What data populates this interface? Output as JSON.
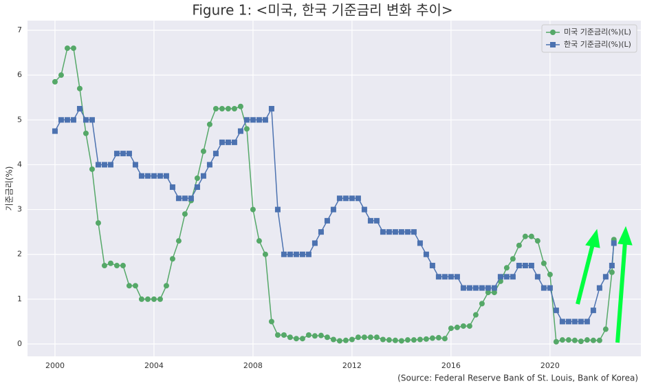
{
  "chart_data": {
    "type": "line",
    "title": "Figure 1: <미국, 한국 기준금리 변화 추이>",
    "y_label": "기준금리(%)",
    "source": "(Source: Federal Reserve Bank of St. Louis, Bank of Korea)",
    "xlim": [
      1998.89,
      2023.67
    ],
    "xticks": [
      2000,
      2004,
      2008,
      2012,
      2016,
      2020
    ],
    "ylim": [
      -0.276,
      7.215
    ],
    "yticks": [
      0,
      1,
      2,
      3,
      4,
      5,
      6,
      7
    ],
    "grid": true,
    "legend": "upper right",
    "series": [
      {
        "name": "미국 기준금리(%)(L)",
        "color": "#55a868",
        "marker": "circle",
        "x": [
          2000,
          2000.25,
          2000.5,
          2000.75,
          2001,
          2001.25,
          2001.5,
          2001.75,
          2002,
          2002.25,
          2002.5,
          2002.75,
          2003,
          2003.25,
          2003.5,
          2003.75,
          2004,
          2004.25,
          2004.5,
          2004.75,
          2005,
          2005.25,
          2005.5,
          2005.75,
          2006,
          2006.25,
          2006.5,
          2006.75,
          2007,
          2007.25,
          2007.5,
          2007.75,
          2008,
          2008.25,
          2008.5,
          2008.75,
          2009,
          2009.25,
          2009.5,
          2009.75,
          2010,
          2010.25,
          2010.5,
          2010.75,
          2011,
          2011.25,
          2011.5,
          2011.75,
          2012,
          2012.25,
          2012.5,
          2012.75,
          2013,
          2013.25,
          2013.5,
          2013.75,
          2014,
          2014.25,
          2014.5,
          2014.75,
          2015,
          2015.25,
          2015.5,
          2015.75,
          2016,
          2016.25,
          2016.5,
          2016.75,
          2017,
          2017.25,
          2017.5,
          2017.75,
          2018,
          2018.25,
          2018.5,
          2018.75,
          2019,
          2019.25,
          2019.5,
          2019.75,
          2020,
          2020.25,
          2020.5,
          2020.75,
          2021,
          2021.25,
          2021.5,
          2021.75,
          2022,
          2022.25,
          2022.5,
          2022.58
        ],
        "values": [
          5.85,
          6.0,
          6.6,
          6.6,
          5.7,
          4.7,
          3.9,
          2.7,
          1.75,
          1.8,
          1.75,
          1.75,
          1.3,
          1.3,
          1.0,
          1.0,
          1.0,
          1.0,
          1.3,
          1.9,
          2.3,
          2.9,
          3.2,
          3.7,
          4.3,
          4.9,
          5.25,
          5.25,
          5.25,
          5.25,
          5.3,
          4.8,
          3.0,
          2.3,
          2.0,
          0.5,
          0.2,
          0.2,
          0.15,
          0.12,
          0.12,
          0.2,
          0.18,
          0.19,
          0.15,
          0.1,
          0.07,
          0.08,
          0.1,
          0.15,
          0.15,
          0.15,
          0.15,
          0.1,
          0.09,
          0.08,
          0.07,
          0.09,
          0.09,
          0.1,
          0.11,
          0.13,
          0.14,
          0.12,
          0.35,
          0.37,
          0.4,
          0.4,
          0.65,
          0.9,
          1.15,
          1.15,
          1.4,
          1.7,
          1.9,
          2.2,
          2.4,
          2.4,
          2.3,
          1.8,
          1.55,
          0.05,
          0.09,
          0.09,
          0.08,
          0.06,
          0.09,
          0.08,
          0.08,
          0.33,
          1.6,
          2.33
        ]
      },
      {
        "name": "한국 기준금리(%)(L)",
        "color": "#4c72b0",
        "marker": "square",
        "x": [
          2000,
          2000.25,
          2000.5,
          2000.75,
          2001,
          2001.25,
          2001.5,
          2001.75,
          2002,
          2002.25,
          2002.5,
          2002.75,
          2003,
          2003.25,
          2003.5,
          2003.75,
          2004,
          2004.25,
          2004.5,
          2004.75,
          2005,
          2005.25,
          2005.5,
          2005.75,
          2006,
          2006.25,
          2006.5,
          2006.75,
          2007,
          2007.25,
          2007.5,
          2007.75,
          2008,
          2008.25,
          2008.5,
          2008.75,
          2009,
          2009.25,
          2009.5,
          2009.75,
          2010,
          2010.25,
          2010.5,
          2010.75,
          2011,
          2011.25,
          2011.5,
          2011.75,
          2012,
          2012.25,
          2012.5,
          2012.75,
          2013,
          2013.25,
          2013.5,
          2013.75,
          2014,
          2014.25,
          2014.5,
          2014.75,
          2015,
          2015.25,
          2015.5,
          2015.75,
          2016,
          2016.25,
          2016.5,
          2016.75,
          2017,
          2017.25,
          2017.5,
          2017.75,
          2018,
          2018.25,
          2018.5,
          2018.75,
          2019,
          2019.25,
          2019.5,
          2019.75,
          2020,
          2020.25,
          2020.5,
          2020.75,
          2021,
          2021.25,
          2021.5,
          2021.75,
          2022,
          2022.25,
          2022.5,
          2022.58
        ],
        "values": [
          4.75,
          5.0,
          5.0,
          5.0,
          5.25,
          5.0,
          5.0,
          4.0,
          4.0,
          4.0,
          4.25,
          4.25,
          4.25,
          4.0,
          3.75,
          3.75,
          3.75,
          3.75,
          3.75,
          3.5,
          3.25,
          3.25,
          3.25,
          3.5,
          3.75,
          4.0,
          4.25,
          4.5,
          4.5,
          4.5,
          4.75,
          5.0,
          5.0,
          5.0,
          5.0,
          5.25,
          3.0,
          2.0,
          2.0,
          2.0,
          2.0,
          2.0,
          2.25,
          2.5,
          2.75,
          3.0,
          3.25,
          3.25,
          3.25,
          3.25,
          3.0,
          2.75,
          2.75,
          2.5,
          2.5,
          2.5,
          2.5,
          2.5,
          2.5,
          2.25,
          2.0,
          1.75,
          1.5,
          1.5,
          1.5,
          1.5,
          1.25,
          1.25,
          1.25,
          1.25,
          1.25,
          1.25,
          1.5,
          1.5,
          1.5,
          1.75,
          1.75,
          1.75,
          1.5,
          1.25,
          1.25,
          0.75,
          0.5,
          0.5,
          0.5,
          0.5,
          0.5,
          0.75,
          1.25,
          1.5,
          1.75,
          2.25
        ]
      }
    ]
  }
}
